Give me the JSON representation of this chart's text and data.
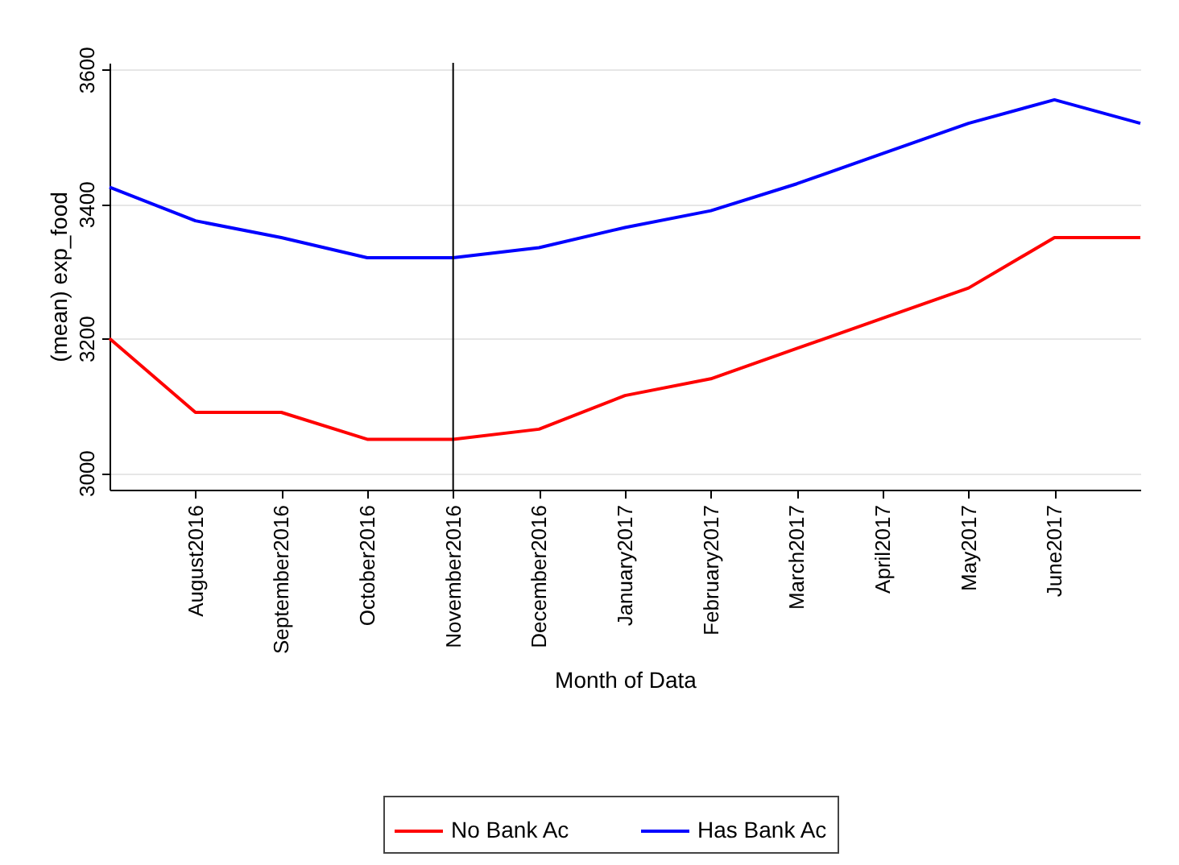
{
  "chart_data": {
    "type": "line",
    "xlabel": "Month of Data",
    "ylabel": "(mean) exp_food",
    "categories": [
      null,
      "August2016",
      "September2016",
      "October2016",
      "November2016",
      "December2016",
      "January2017",
      "February2017",
      "March2017",
      "April2017",
      "May2017",
      "June2017",
      null
    ],
    "series": [
      {
        "name": "No Bank Ac",
        "color": "#ff0000",
        "values": [
          3200,
          3090,
          3090,
          3050,
          3050,
          3065,
          3115,
          3140,
          3185,
          3230,
          3275,
          3350,
          3350
        ]
      },
      {
        "name": "Has Bank Ac",
        "color": "#0000ff",
        "values": [
          3425,
          3375,
          3350,
          3320,
          3320,
          3335,
          3365,
          3390,
          3430,
          3475,
          3520,
          3555,
          3520
        ]
      }
    ],
    "ylim": [
      2975,
      3610
    ],
    "yticks": [
      {
        "value": 3000,
        "label": "3000"
      },
      {
        "value": 3200,
        "label": "3200"
      },
      {
        "value": 3400,
        "label": "3400"
      },
      {
        "value": 3600,
        "label": "3600"
      }
    ],
    "grid": "y",
    "legend": "bottom",
    "marker": "none",
    "line_style": "solid",
    "ref_lines": [
      {
        "axis": "x",
        "value": "November2016",
        "color": "#000000"
      }
    ]
  }
}
